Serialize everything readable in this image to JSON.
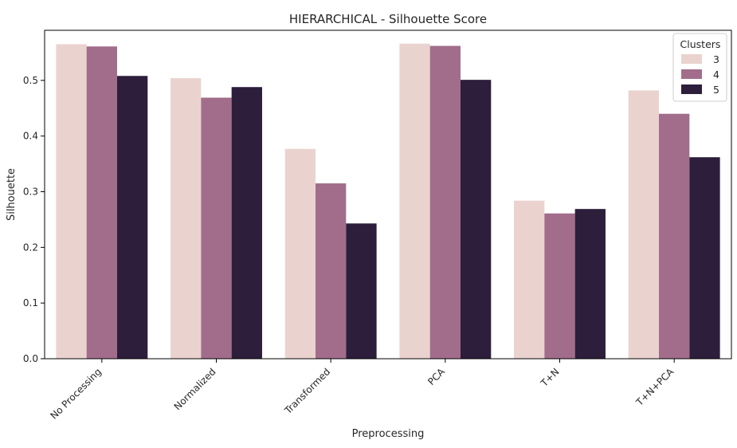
{
  "chart_data": {
    "type": "bar",
    "title": "HIERARCHICAL - Silhouette Score",
    "xlabel": "Preprocessing",
    "ylabel": "Silhouette",
    "categories": [
      "No Processing",
      "Normalized",
      "Transformed",
      "PCA",
      "T+N",
      "T+N+PCA"
    ],
    "ylim": [
      0,
      0.59
    ],
    "yticks": [
      0.0,
      0.1,
      0.2,
      0.3,
      0.4,
      0.5
    ],
    "ytick_labels": [
      "0.0",
      "0.1",
      "0.2",
      "0.3",
      "0.4",
      "0.5"
    ],
    "grid": false,
    "legend": {
      "title": "Clusters",
      "placement": "top-right"
    },
    "series": [
      {
        "name": "3",
        "color": "#ead3cf",
        "values": [
          0.565,
          0.504,
          0.377,
          0.566,
          0.284,
          0.482
        ]
      },
      {
        "name": "4",
        "color": "#a26d8b",
        "values": [
          0.561,
          0.469,
          0.315,
          0.562,
          0.261,
          0.44
        ]
      },
      {
        "name": "5",
        "color": "#2d1e3b",
        "values": [
          0.508,
          0.488,
          0.243,
          0.501,
          0.269,
          0.362
        ]
      }
    ]
  }
}
